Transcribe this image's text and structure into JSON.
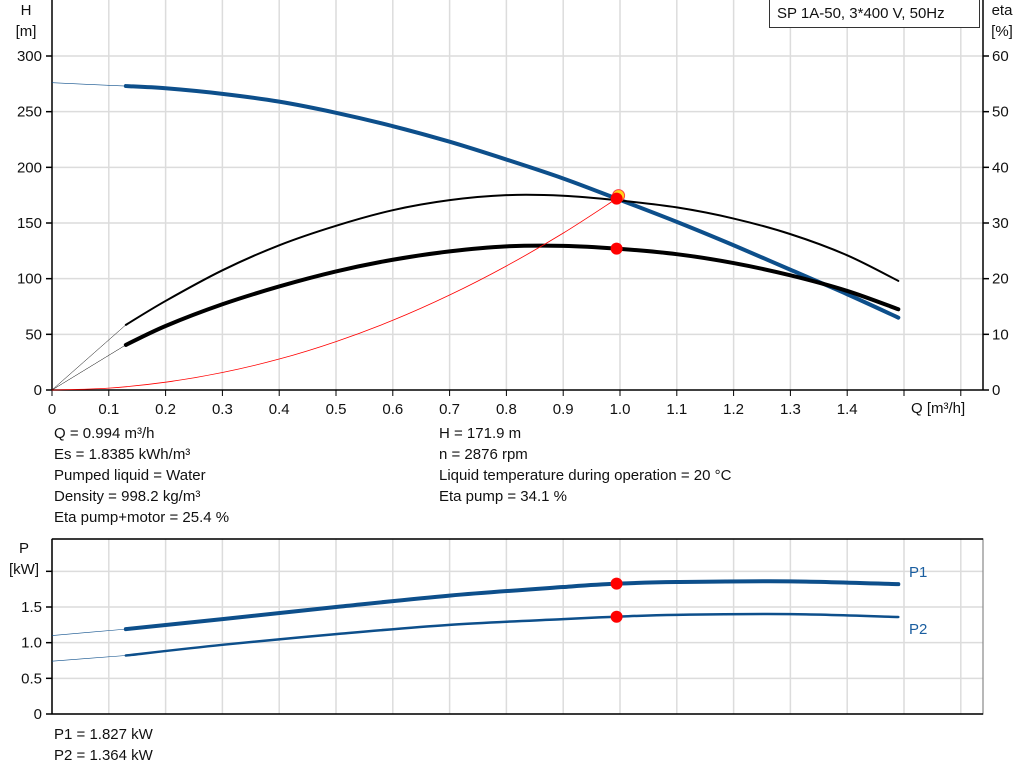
{
  "title": "SP 1A-50, 3*400 V, 50Hz",
  "colors": {
    "head": "#0d4f8b",
    "eta": "#000000",
    "system": "#ff0000",
    "point": "#ff0000",
    "power": "#0d4f8b",
    "grid": "#dcdcdc"
  },
  "chart_data": [
    {
      "type": "line",
      "title": "SP 1A-50, 3*400 V, 50Hz",
      "xlabel": "Q [m³/h]",
      "ylabel": "H\n[m]",
      "ylabel_left_lines": [
        "H",
        "[m]"
      ],
      "ylabel_right_lines": [
        "eta",
        "[%]"
      ],
      "xlim": [
        0,
        1.64
      ],
      "ylim": [
        0,
        300
      ],
      "y2lim": [
        0,
        60
      ],
      "grid": true,
      "x_ticks": [
        "0",
        "0.1",
        "0.2",
        "0.3",
        "0.4",
        "0.5",
        "0.6",
        "0.7",
        "0.8",
        "0.9",
        "1.0",
        "1.1",
        "1.2",
        "1.3",
        "1.4"
      ],
      "y_ticks": [
        "0",
        "50",
        "100",
        "150",
        "200",
        "250",
        "300"
      ],
      "y2_ticks": [
        "0",
        "10",
        "20",
        "30",
        "40",
        "50",
        "60"
      ],
      "series": [
        {
          "key": "head",
          "axis": "left",
          "x": [
            0.13,
            0.2,
            0.3,
            0.4,
            0.5,
            0.6,
            0.7,
            0.8,
            0.9,
            0.994,
            1.1,
            1.2,
            1.3,
            1.4,
            1.49
          ],
          "y": [
            273,
            271,
            266,
            259,
            249,
            237,
            223,
            207,
            190,
            171.9,
            151,
            130,
            108,
            86,
            65
          ],
          "extension": {
            "x": [
              0,
              0.13
            ],
            "y": [
              276,
              273
            ]
          }
        },
        {
          "key": "eta_pump",
          "axis": "right",
          "x": [
            0.13,
            0.2,
            0.3,
            0.4,
            0.5,
            0.6,
            0.7,
            0.8,
            0.9,
            0.994,
            1.1,
            1.2,
            1.3,
            1.4,
            1.49
          ],
          "y": [
            11.7,
            16,
            21.5,
            26,
            29.5,
            32.3,
            34.1,
            35,
            34.9,
            34.1,
            32.8,
            30.8,
            28,
            24.2,
            19.6
          ],
          "extension": {
            "x": [
              0,
              0.13
            ],
            "y": [
              0,
              11.7
            ]
          }
        },
        {
          "key": "eta_total",
          "axis": "right",
          "x": [
            0.13,
            0.2,
            0.3,
            0.4,
            0.5,
            0.6,
            0.7,
            0.8,
            0.9,
            0.994,
            1.1,
            1.2,
            1.3,
            1.4,
            1.49
          ],
          "y": [
            8.1,
            11.5,
            15.4,
            18.6,
            21.3,
            23.4,
            24.9,
            25.8,
            25.9,
            25.4,
            24.4,
            22.8,
            20.6,
            17.8,
            14.5
          ],
          "extension": {
            "x": [
              0,
              0.13
            ],
            "y": [
              0,
              8.1
            ]
          }
        },
        {
          "key": "system",
          "axis": "left",
          "x": [
            0,
            0.1,
            0.2,
            0.3,
            0.4,
            0.5,
            0.6,
            0.7,
            0.8,
            0.9,
            0.994
          ],
          "y": [
            0,
            1.7,
            7,
            15.7,
            27.8,
            43.5,
            62.6,
            85.3,
            111.4,
            140.9,
            171.9
          ]
        }
      ],
      "points": [
        {
          "axis": "left",
          "x": 0.994,
          "y": 171.9
        },
        {
          "axis": "right",
          "x": 0.994,
          "y": 25.4
        }
      ]
    },
    {
      "type": "line",
      "ylabel_left_lines": [
        "P",
        "[kW]"
      ],
      "xlim": [
        0,
        1.64
      ],
      "ylim": [
        0,
        2.0
      ],
      "grid": true,
      "y_ticks": [
        "0",
        "0.5",
        "1.0",
        "1.5",
        ""
      ],
      "series": [
        {
          "key": "p1",
          "name": "P1",
          "x": [
            0.13,
            0.3,
            0.5,
            0.7,
            0.9,
            0.994,
            1.1,
            1.3,
            1.49
          ],
          "y": [
            1.19,
            1.33,
            1.5,
            1.66,
            1.78,
            1.827,
            1.85,
            1.86,
            1.82
          ],
          "extension": {
            "x": [
              0,
              0.13
            ],
            "y": [
              1.1,
              1.19
            ]
          }
        },
        {
          "key": "p2",
          "name": "P2",
          "x": [
            0.13,
            0.3,
            0.5,
            0.7,
            0.9,
            0.994,
            1.1,
            1.3,
            1.49
          ],
          "y": [
            0.82,
            0.97,
            1.12,
            1.25,
            1.33,
            1.364,
            1.39,
            1.4,
            1.36
          ],
          "extension": {
            "x": [
              0,
              0.13
            ],
            "y": [
              0.74,
              0.82
            ]
          }
        }
      ],
      "points": [
        {
          "x": 0.994,
          "y": 1.827
        },
        {
          "x": 0.994,
          "y": 1.364
        }
      ]
    }
  ],
  "info_left": [
    "Q = 0.994 m³/h",
    "Es = 1.8385 kWh/m³",
    "Pumped liquid = Water",
    "Density = 998.2 kg/m³",
    "Eta pump+motor = 25.4 %"
  ],
  "info_right": [
    "H = 171.9 m",
    "n = 2876 rpm",
    "Liquid temperature during operation = 20 °C",
    "Eta pump = 34.1 %"
  ],
  "info_power": [
    "P1 = 1.827 kW",
    "P2 = 1.364 kW"
  ]
}
